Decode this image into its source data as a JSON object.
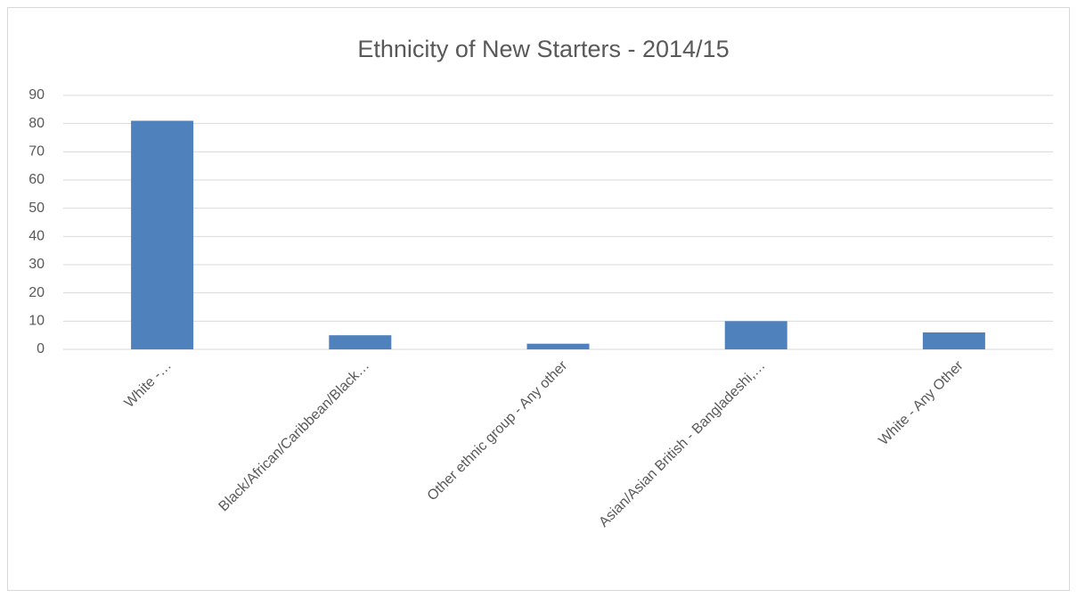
{
  "chart_data": {
    "type": "bar",
    "title": "Ethnicity of New Starters - 2014/15",
    "categories": [
      "White -…",
      "Black/African/Caribbean/Black…",
      "Other ethnic group - Any other",
      "Asian/Asian British - Bangladeshi,…",
      "White - Any Other"
    ],
    "values": [
      81,
      5,
      2,
      10,
      6
    ],
    "color": "#4f81bd",
    "ylim": [
      0,
      90
    ],
    "yticks": [
      0,
      10,
      20,
      30,
      40,
      50,
      60,
      70,
      80,
      90
    ],
    "grid": true
  }
}
